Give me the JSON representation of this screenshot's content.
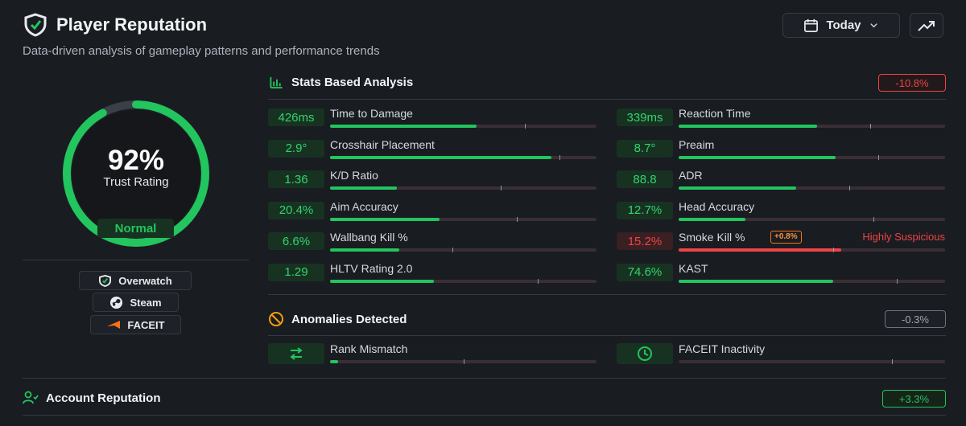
{
  "header": {
    "title": "Player Reputation",
    "subtitle": "Data-driven analysis of gameplay patterns and performance trends",
    "date_label": "Today"
  },
  "trust": {
    "percent_text": "92%",
    "label": "Trust Rating",
    "status": "Normal",
    "progress_fraction": 0.92
  },
  "sources": [
    {
      "label": "Overwatch",
      "icon": "overwatch-shield-icon"
    },
    {
      "label": "Steam",
      "icon": "steam-icon"
    },
    {
      "label": "FACEIT",
      "icon": "faceit-icon"
    }
  ],
  "stats_section": {
    "title": "Stats Based Analysis",
    "delta": "-10.8%",
    "items": [
      {
        "value": "426ms",
        "label": "Time to Damage",
        "fill": 0.55,
        "marker": 0.73
      },
      {
        "value": "339ms",
        "label": "Reaction Time",
        "fill": 0.52,
        "marker": 0.72
      },
      {
        "value": "2.9°",
        "label": "Crosshair Placement",
        "fill": 0.83,
        "marker": 0.86
      },
      {
        "value": "8.7°",
        "label": "Preaim",
        "fill": 0.59,
        "marker": 0.75
      },
      {
        "value": "1.36",
        "label": "K/D Ratio",
        "fill": 0.25,
        "marker": 0.64
      },
      {
        "value": "88.8",
        "label": "ADR",
        "fill": 0.44,
        "marker": 0.64
      },
      {
        "value": "20.4%",
        "label": "Aim Accuracy",
        "fill": 0.41,
        "marker": 0.7
      },
      {
        "value": "12.7%",
        "label": "Head Accuracy",
        "fill": 0.25,
        "marker": 0.73
      },
      {
        "value": "6.6%",
        "label": "Wallbang Kill %",
        "fill": 0.26,
        "marker": 0.46
      },
      {
        "value": "15.2%",
        "label": "Smoke Kill %",
        "fill": 0.61,
        "marker": 0.58,
        "danger": true,
        "badge": "+0.8%",
        "note": "Highly Suspicious"
      },
      {
        "value": "1.29",
        "label": "HLTV Rating 2.0",
        "fill": 0.39,
        "marker": 0.78
      },
      {
        "value": "74.6%",
        "label": "KAST",
        "fill": 0.58,
        "marker": 0.82
      }
    ]
  },
  "anomalies_section": {
    "title": "Anomalies Detected",
    "delta": "-0.3%",
    "items": [
      {
        "label": "Rank Mismatch",
        "icon": "swap-arrows-icon",
        "fill": 0.03,
        "marker": 0.5
      },
      {
        "label": "FACEIT Inactivity",
        "icon": "clock-icon",
        "fill": 0.0,
        "marker": 0.8
      }
    ]
  },
  "account_section": {
    "title": "Account Reputation",
    "delta": "+3.3%"
  },
  "colors": {
    "good": "#22c55e",
    "danger": "#ef4444",
    "warning": "#f97316",
    "neutral": "#a1a7af"
  }
}
